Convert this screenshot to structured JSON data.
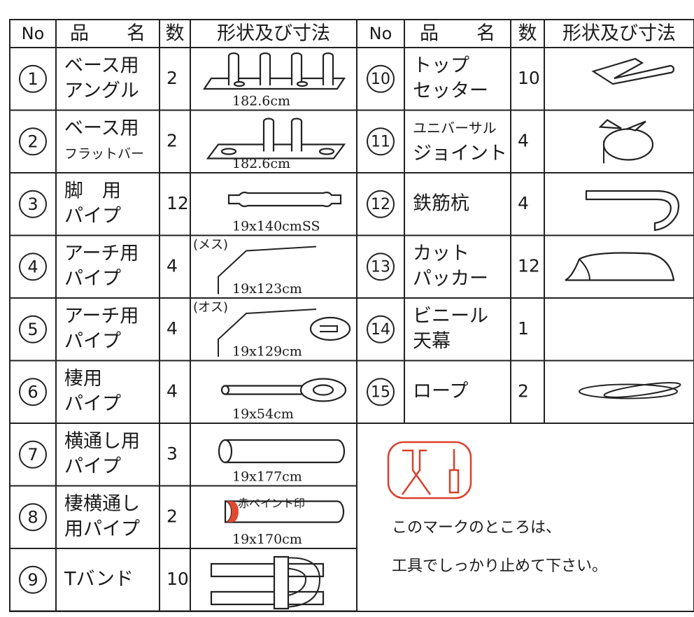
{
  "header": {
    "left": [
      "No",
      "品　　名",
      "数",
      "形状及び寸法"
    ],
    "right": [
      "No",
      "品　　名",
      "数",
      "形状及び寸法"
    ]
  },
  "left_rows": [
    {
      "no": "1",
      "name": [
        "ベース用",
        "アングル"
      ],
      "qty": 2,
      "size": "182.6cm"
    },
    {
      "no": "2",
      "name": [
        "ベース用",
        "フラットバー"
      ],
      "qty": 2,
      "size": "182.6cm"
    },
    {
      "no": "3",
      "name": [
        "脚　用",
        "パイプ"
      ],
      "qty": 12,
      "size": "19x140cmSS"
    },
    {
      "no": "4",
      "name": [
        "アーチ用",
        "パイプ"
      ],
      "qty": 4,
      "size": "19x123cm",
      "note": "(メス)"
    },
    {
      "no": "5",
      "name": [
        "アーチ用",
        "パイプ"
      ],
      "qty": 4,
      "size": "19x129cm",
      "note": "(オス)"
    },
    {
      "no": "6",
      "name": [
        "棲用",
        "パイプ"
      ],
      "qty": 4,
      "size": "19x54cm"
    },
    {
      "no": "7",
      "name": [
        "横通し用",
        "パイプ"
      ],
      "qty": 3,
      "size": "19x177cm"
    },
    {
      "no": "8",
      "name": [
        "棲横通し",
        "用パイプ"
      ],
      "qty": 2,
      "size": "19x170cm",
      "mark": "赤ペイント印"
    },
    {
      "no": "9",
      "name": [
        "Tバンド"
      ],
      "qty": 10
    }
  ],
  "right_rows": [
    {
      "no": "10",
      "name": [
        "トップ",
        "セッター"
      ],
      "qty": 10
    },
    {
      "no": "11",
      "name": [
        "ユニバーサル",
        "ジョイント"
      ],
      "qty": 4
    },
    {
      "no": "12",
      "name": [
        "鉄筋杭"
      ],
      "qty": 4
    },
    {
      "no": "13",
      "name": [
        "カット",
        "パッカー"
      ],
      "qty": 12
    },
    {
      "no": "14",
      "name": [
        "ビニール",
        "天幕"
      ],
      "qty": 1
    },
    {
      "no": "15",
      "name": [
        "ロープ"
      ],
      "qty": 2
    }
  ],
  "note": [
    "このマークのところは、",
    "工具でしっかり止めて下さい。"
  ]
}
